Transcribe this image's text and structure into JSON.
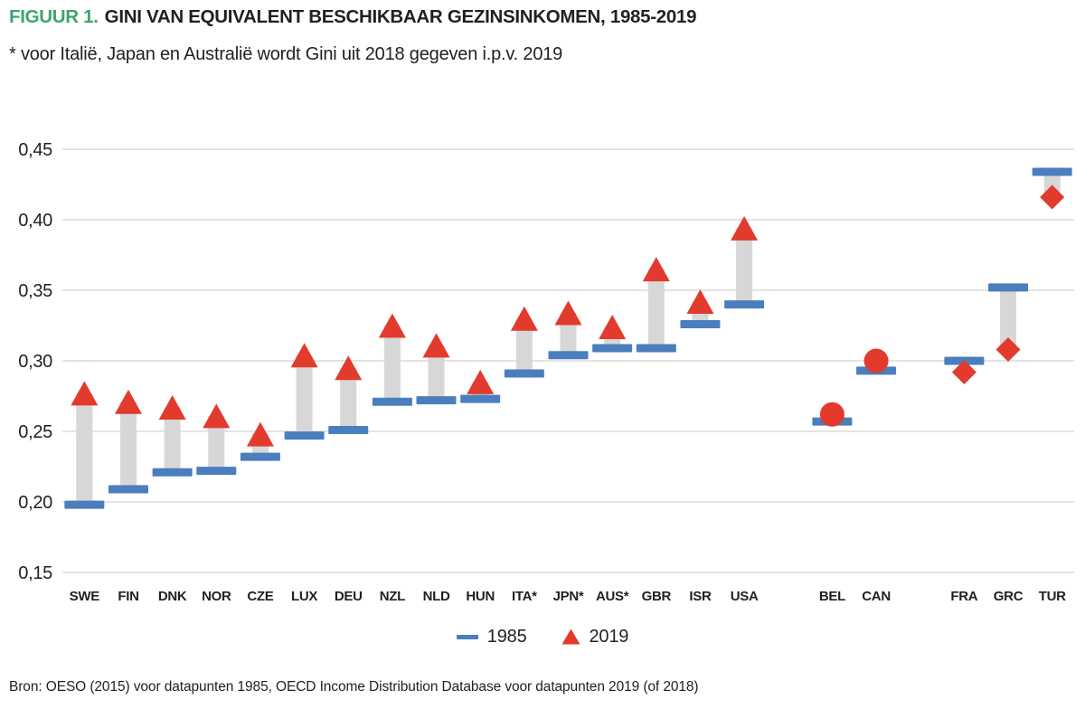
{
  "title": {
    "prefix": "FIGUUR 1.",
    "text": "GINI VAN EQUIVALENT BESCHIKBAAR GEZINSINKOMEN, 1985-2019"
  },
  "subtitle": "* voor Italië, Japan en Australië wordt Gini uit 2018 gegeven i.p.v. 2019",
  "source": "Bron: OESO (2015) voor datapunten 1985, OECD Income Distribution Database voor datapunten 2019 (of 2018)",
  "legend": {
    "items": [
      {
        "label": "1985",
        "marker": "dash"
      },
      {
        "label": "2019",
        "marker": "triangle"
      }
    ]
  },
  "colors": {
    "title_accent_green": "#3ba56c",
    "text": "#231f20",
    "blue_1985": "#4a7ebd",
    "red_2019": "#e23a2d",
    "connector_grey": "#d7d7d7",
    "gridline": "#dcdcdc"
  },
  "chart_data": {
    "type": "dumbbell",
    "description": "Gini coefficient per country: blue dash = 1985 value, red marker = 2019 value, grey connector shows change. Triangle = increase, diamond = decrease, circle = roughly unchanged.",
    "series_names": [
      "1985",
      "2019"
    ],
    "ylim": [
      0.15,
      0.45
    ],
    "grid": true,
    "legend_position": "bottom-center",
    "yticks": [
      {
        "value": 0.45,
        "label": "0,45"
      },
      {
        "value": 0.4,
        "label": "0,40"
      },
      {
        "value": 0.35,
        "label": "0,35"
      },
      {
        "value": 0.3,
        "label": "0,30"
      },
      {
        "value": 0.25,
        "label": "0,25"
      },
      {
        "value": 0.2,
        "label": "0,20"
      },
      {
        "value": 0.15,
        "label": "0,15"
      }
    ],
    "countries": [
      {
        "code": "SWE",
        "slot": 0,
        "gini_1985": 0.198,
        "gini_2019": 0.277,
        "marker_2019": "triangle"
      },
      {
        "code": "FIN",
        "slot": 1,
        "gini_1985": 0.209,
        "gini_2019": 0.271,
        "marker_2019": "triangle"
      },
      {
        "code": "DNK",
        "slot": 2,
        "gini_1985": 0.221,
        "gini_2019": 0.267,
        "marker_2019": "triangle"
      },
      {
        "code": "NOR",
        "slot": 3,
        "gini_1985": 0.222,
        "gini_2019": 0.261,
        "marker_2019": "triangle"
      },
      {
        "code": "CZE",
        "slot": 4,
        "gini_1985": 0.232,
        "gini_2019": 0.248,
        "marker_2019": "triangle"
      },
      {
        "code": "LUX",
        "slot": 5,
        "gini_1985": 0.247,
        "gini_2019": 0.304,
        "marker_2019": "triangle"
      },
      {
        "code": "DEU",
        "slot": 6,
        "gini_1985": 0.251,
        "gini_2019": 0.295,
        "marker_2019": "triangle"
      },
      {
        "code": "NZL",
        "slot": 7,
        "gini_1985": 0.271,
        "gini_2019": 0.325,
        "marker_2019": "triangle"
      },
      {
        "code": "NLD",
        "slot": 8,
        "gini_1985": 0.272,
        "gini_2019": 0.311,
        "marker_2019": "triangle"
      },
      {
        "code": "HUN",
        "slot": 9,
        "gini_1985": 0.273,
        "gini_2019": 0.285,
        "marker_2019": "triangle"
      },
      {
        "code": "ITA*",
        "slot": 10,
        "gini_1985": 0.291,
        "gini_2019": 0.33,
        "marker_2019": "triangle"
      },
      {
        "code": "JPN*",
        "slot": 11,
        "gini_1985": 0.304,
        "gini_2019": 0.334,
        "marker_2019": "triangle"
      },
      {
        "code": "AUS*",
        "slot": 12,
        "gini_1985": 0.309,
        "gini_2019": 0.324,
        "marker_2019": "triangle"
      },
      {
        "code": "GBR",
        "slot": 13,
        "gini_1985": 0.309,
        "gini_2019": 0.365,
        "marker_2019": "triangle"
      },
      {
        "code": "ISR",
        "slot": 14,
        "gini_1985": 0.326,
        "gini_2019": 0.342,
        "marker_2019": "triangle"
      },
      {
        "code": "USA",
        "slot": 15,
        "gini_1985": 0.34,
        "gini_2019": 0.394,
        "marker_2019": "triangle"
      },
      {
        "code": "BEL",
        "slot": 17,
        "gini_1985": 0.257,
        "gini_2019": 0.262,
        "marker_2019": "circle"
      },
      {
        "code": "CAN",
        "slot": 18,
        "gini_1985": 0.293,
        "gini_2019": 0.3,
        "marker_2019": "circle"
      },
      {
        "code": "FRA",
        "slot": 20,
        "gini_1985": 0.3,
        "gini_2019": 0.292,
        "marker_2019": "diamond"
      },
      {
        "code": "GRC",
        "slot": 21,
        "gini_1985": 0.352,
        "gini_2019": 0.308,
        "marker_2019": "diamond"
      },
      {
        "code": "TUR",
        "slot": 22,
        "gini_1985": 0.434,
        "gini_2019": 0.416,
        "marker_2019": "diamond"
      }
    ]
  }
}
